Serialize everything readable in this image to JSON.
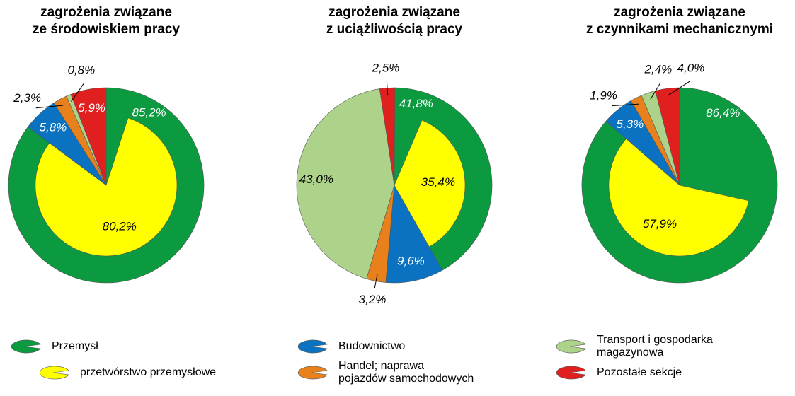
{
  "legend": [
    {
      "name": [
        "Przemysł"
      ],
      "color": "#0b9a3f"
    },
    {
      "name": [
        "przetwórstwo przemysłowe"
      ],
      "color": "#ffff00"
    },
    {
      "name": [
        "Budownictwo"
      ],
      "color": "#0a72c0"
    },
    {
      "name": [
        "Handel; naprawa",
        "pojazdów samochodowych"
      ],
      "color": "#e8801c"
    },
    {
      "name": [
        "Transport i gospodarka",
        "magazynowa"
      ],
      "color": "#add38b"
    },
    {
      "name": [
        "Pozostałe sekcje"
      ],
      "color": "#e0201f"
    }
  ],
  "chart_data": [
    {
      "type": "pie",
      "title": [
        "zagrożenia związane",
        "ze środowiskiem pracy"
      ],
      "values": [
        85.2,
        5.8,
        2.3,
        0.8,
        5.9
      ],
      "value_labels": [
        "85,2%",
        "5,8%",
        "2,3%",
        "0,8%",
        "5,9%"
      ],
      "inner": {
        "value": 80.2,
        "value_label": "80,2%"
      }
    },
    {
      "type": "pie",
      "title": [
        "zagrożenia związane",
        "z uciążliwością pracy"
      ],
      "values": [
        41.8,
        9.6,
        3.2,
        43.0,
        2.5
      ],
      "value_labels": [
        "41,8%",
        "9,6%",
        "3,2%",
        "43,0%",
        "2,5%"
      ],
      "inner": {
        "value": 35.4,
        "value_label": "35,4%"
      }
    },
    {
      "type": "pie",
      "title": [
        "zagrożenia związane",
        "z czynnikami mechanicznymi"
      ],
      "values": [
        86.4,
        5.3,
        1.9,
        2.4,
        4.0
      ],
      "value_labels": [
        "86,4%",
        "5,3%",
        "1,9%",
        "2,4%",
        "4,0%"
      ],
      "inner": {
        "value": 57.9,
        "value_label": "57,9%"
      }
    }
  ]
}
